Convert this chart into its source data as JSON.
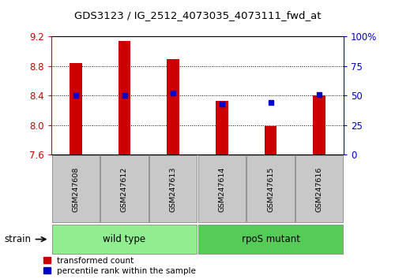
{
  "title": "GDS3123 / IG_2512_4073035_4073111_fwd_at",
  "samples": [
    "GSM247608",
    "GSM247612",
    "GSM247613",
    "GSM247614",
    "GSM247615",
    "GSM247616"
  ],
  "red_values": [
    8.84,
    9.14,
    8.89,
    8.33,
    7.99,
    8.4
  ],
  "blue_values": [
    50,
    50,
    52,
    43,
    44,
    51
  ],
  "ylim_left": [
    7.6,
    9.2
  ],
  "ylim_right": [
    0,
    100
  ],
  "yticks_left": [
    7.6,
    8.0,
    8.4,
    8.8,
    9.2
  ],
  "yticks_right": [
    0,
    25,
    50,
    75,
    100
  ],
  "ytick_labels_right": [
    "0",
    "25",
    "50",
    "75",
    "100%"
  ],
  "strain_label": "strain",
  "bar_color": "#CC0000",
  "marker_color": "#0000CC",
  "bar_width": 0.25,
  "left_axis_color": "#CC0000",
  "right_axis_color": "#0000CC",
  "group_defs": [
    {
      "label": "wild type",
      "start": 0,
      "end": 2,
      "color": "#90EE90"
    },
    {
      "label": "rpoS mutant",
      "start": 3,
      "end": 5,
      "color": "#55CC55"
    }
  ],
  "sample_box_color": "#C8C8C8",
  "legend_items": [
    {
      "color": "#CC0000",
      "label": "transformed count"
    },
    {
      "color": "#0000CC",
      "label": "percentile rank within the sample"
    }
  ]
}
